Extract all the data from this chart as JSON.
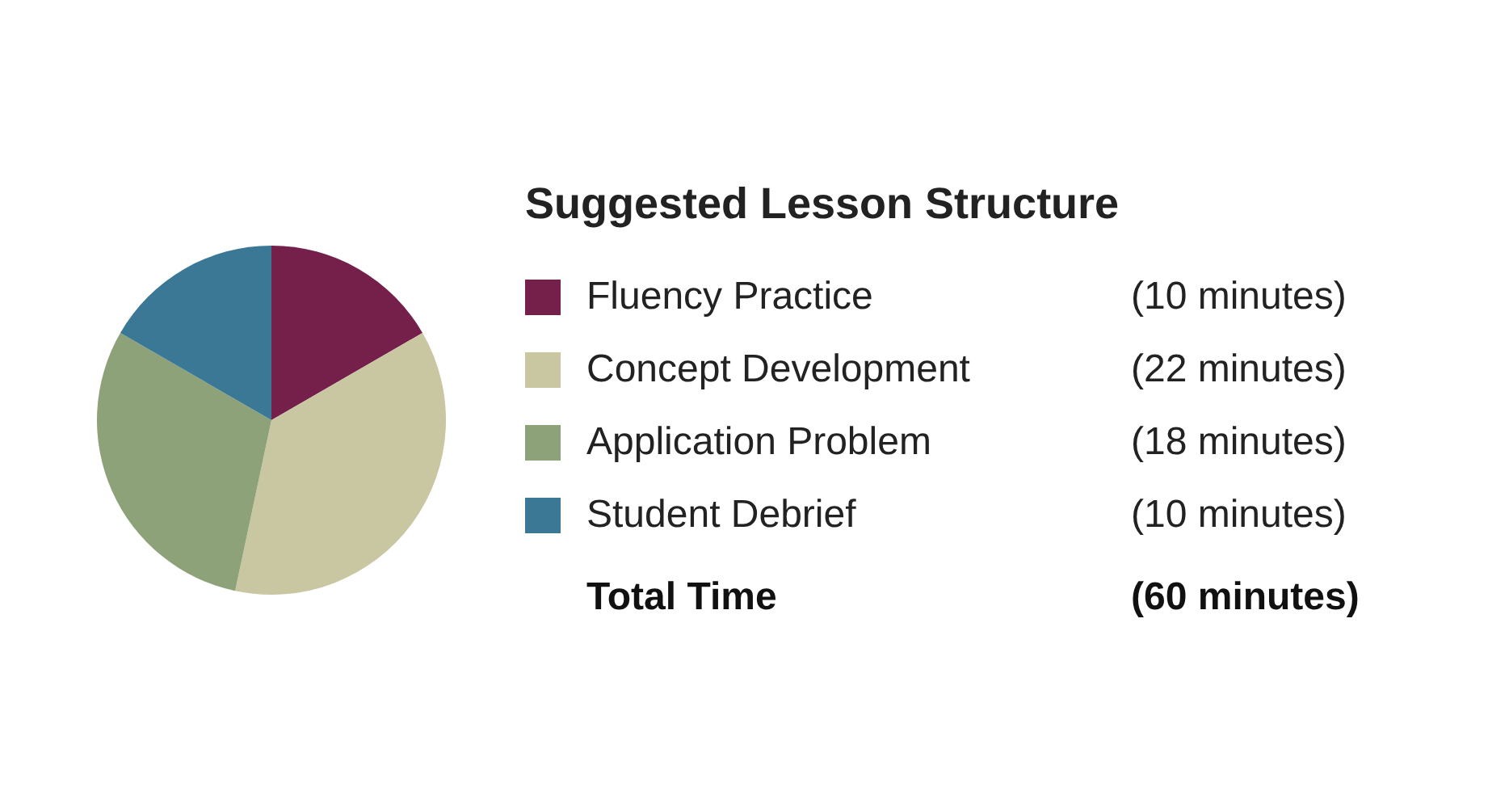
{
  "chart_data": {
    "type": "pie",
    "title": "Suggested Lesson Structure",
    "categories": [
      "Fluency  Practice",
      "Concept Development",
      "Application Problem",
      "Student Debrief"
    ],
    "values": [
      10,
      22,
      18,
      10
    ],
    "colors": [
      "#74204a",
      "#c9c6a2",
      "#8ea27a",
      "#3a7896"
    ],
    "value_labels": [
      "(10 minutes)",
      "(22 minutes)",
      "(18 minutes)",
      "(10 minutes)"
    ],
    "annotations": [
      "Total Time",
      "(60 minutes)"
    ],
    "legend": "right"
  }
}
